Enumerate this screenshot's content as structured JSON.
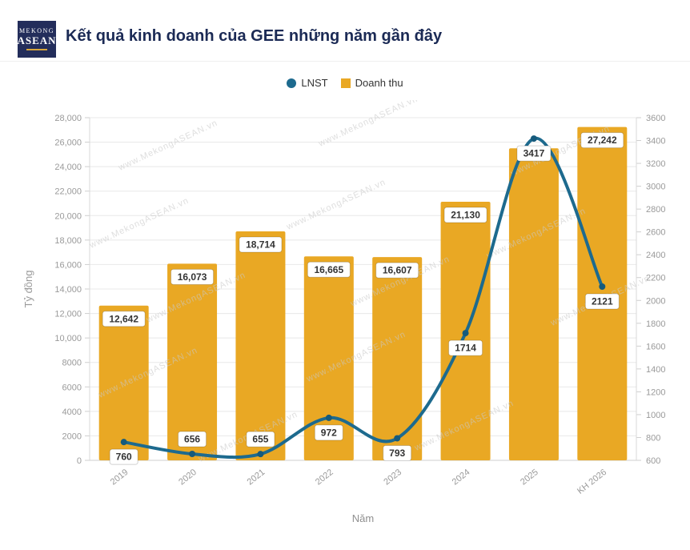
{
  "header": {
    "logo": {
      "line1": "Mekong",
      "line2": "ASEAN"
    },
    "title": "Kết quả kinh doanh của GEE những năm gần đây"
  },
  "legend": [
    {
      "label": "LNST",
      "color": "#1d6a8e",
      "shape": "circle"
    },
    {
      "label": "Doanh thu",
      "color": "#e9a824",
      "shape": "square"
    }
  ],
  "watermark": "www.MekongASEAN.vn",
  "chart_data": {
    "type": "combo",
    "categories": [
      "2019",
      "2020",
      "2021",
      "2022",
      "2023",
      "2024",
      "2025",
      "KH 2026"
    ],
    "series": [
      {
        "name": "Doanh thu",
        "type": "bar",
        "axis": "left",
        "color": "#e9a824",
        "values": [
          12642,
          16073,
          18714,
          16665,
          16607,
          21130,
          25500,
          27242
        ],
        "labels": [
          "12,642",
          "16,073",
          "18,714",
          "16,665",
          "16,607",
          "21,130",
          null,
          "27,242"
        ]
      },
      {
        "name": "LNST",
        "type": "line",
        "axis": "right",
        "color": "#1d6a8e",
        "marker_color": "#155a7c",
        "values": [
          760,
          656,
          655,
          972,
          793,
          1714,
          3417,
          2121
        ],
        "labels": [
          "760",
          "656",
          "655",
          "972",
          "793",
          "1714",
          "3417",
          "2121"
        ],
        "label_positions": [
          "below",
          "above",
          "above",
          "below",
          "below",
          "below",
          "below",
          "below"
        ]
      }
    ],
    "left_axis": {
      "title": "Tỷ đồng",
      "min": 0,
      "max": 28000,
      "tick_labels": [
        "0",
        "2000",
        "4000",
        "6000",
        "8000",
        "10,000",
        "12,000",
        "14,000",
        "16,000",
        "18,000",
        "20,000",
        "22,000",
        "24,000",
        "26,000",
        "28,000"
      ]
    },
    "right_axis": {
      "min": 600,
      "max": 3600,
      "tick_labels": [
        "600",
        "800",
        "1000",
        "1200",
        "1400",
        "1600",
        "1800",
        "2000",
        "2200",
        "2400",
        "2600",
        "2800",
        "3000",
        "3200",
        "3400",
        "3600"
      ]
    },
    "xlabel": "Năm",
    "grid": true,
    "legend_position": "top"
  }
}
